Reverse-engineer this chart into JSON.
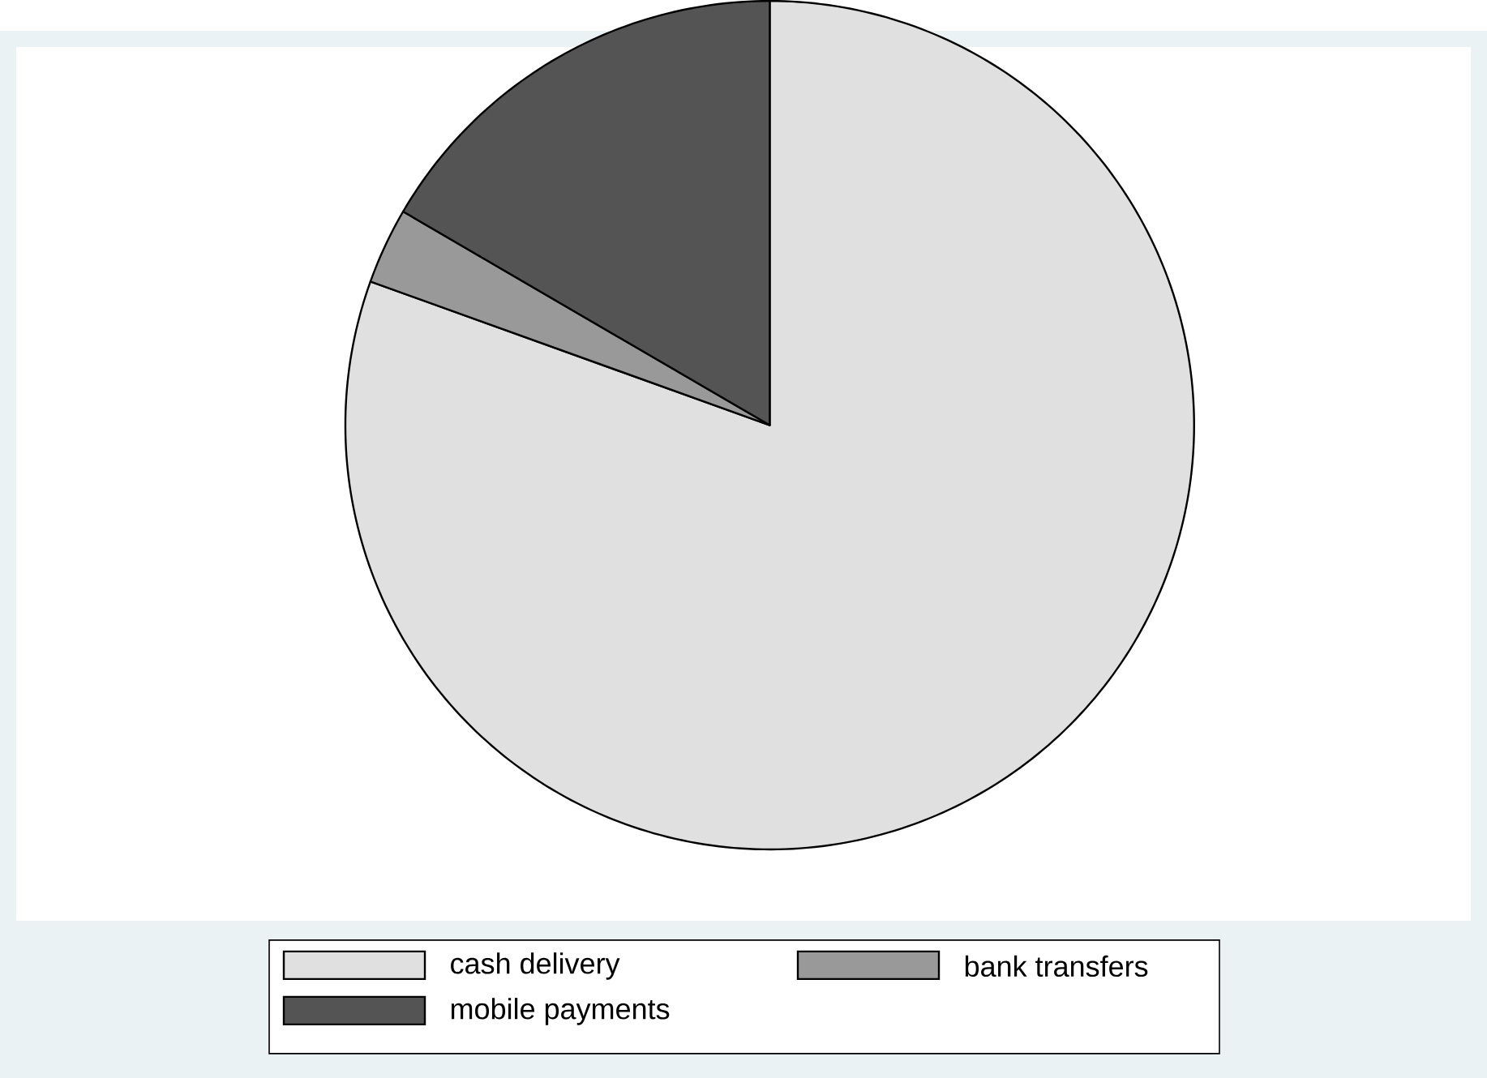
{
  "chart_data": {
    "type": "pie",
    "categories": [
      "cash delivery",
      "bank transfers",
      "mobile payments"
    ],
    "values": [
      80.5,
      2.9,
      16.6
    ],
    "colors": [
      "#e0e0e0",
      "#999999",
      "#545454"
    ],
    "legend": "bottom"
  }
}
